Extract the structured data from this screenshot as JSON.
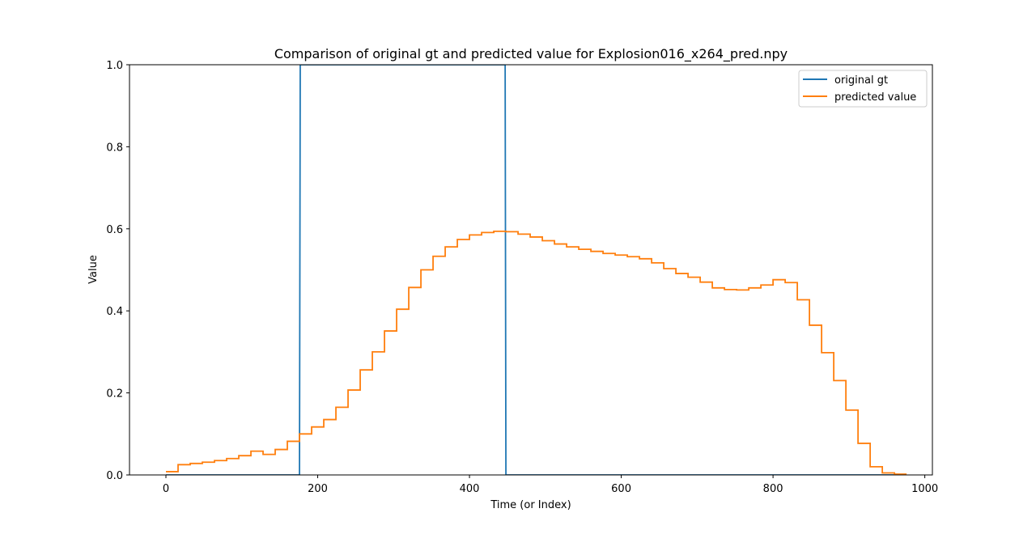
{
  "chart_data": {
    "type": "line",
    "title": "Comparison of original gt and predicted value for Explosion016_x264_pred.npy",
    "xlabel": "Time (or Index)",
    "ylabel": "Value",
    "xlim": [
      -48,
      1010
    ],
    "ylim": [
      0,
      1
    ],
    "xticks": [
      0,
      200,
      400,
      600,
      800,
      1000
    ],
    "xtick_labels": [
      "0",
      "200",
      "400",
      "600",
      "800",
      "1000"
    ],
    "yticks": [
      0.0,
      0.2,
      0.4,
      0.6,
      0.8,
      1.0
    ],
    "ytick_labels": [
      "0.0",
      "0.2",
      "0.4",
      "0.6",
      "0.8",
      "1.0"
    ],
    "grid": false,
    "legend_position": "top-right",
    "series": [
      {
        "name": "original gt",
        "color": "#1f77b4",
        "x": [
          0,
          176,
          177,
          447,
          448,
          960
        ],
        "y": [
          0,
          0,
          1,
          1,
          0,
          0
        ]
      },
      {
        "name": "predicted value",
        "color": "#ff7f0e",
        "step_width": 16,
        "x0": 0,
        "y": [
          0.008,
          0.025,
          0.028,
          0.031,
          0.035,
          0.04,
          0.047,
          0.058,
          0.05,
          0.062,
          0.082,
          0.1,
          0.117,
          0.135,
          0.165,
          0.207,
          0.256,
          0.3,
          0.351,
          0.404,
          0.457,
          0.5,
          0.533,
          0.556,
          0.574,
          0.585,
          0.591,
          0.594,
          0.593,
          0.587,
          0.58,
          0.571,
          0.563,
          0.556,
          0.55,
          0.545,
          0.54,
          0.536,
          0.532,
          0.527,
          0.517,
          0.503,
          0.491,
          0.482,
          0.47,
          0.456,
          0.452,
          0.451,
          0.456,
          0.463,
          0.476,
          0.469,
          0.427,
          0.365,
          0.298,
          0.23,
          0.158,
          0.077,
          0.02,
          0.005,
          0.002
        ]
      }
    ]
  }
}
